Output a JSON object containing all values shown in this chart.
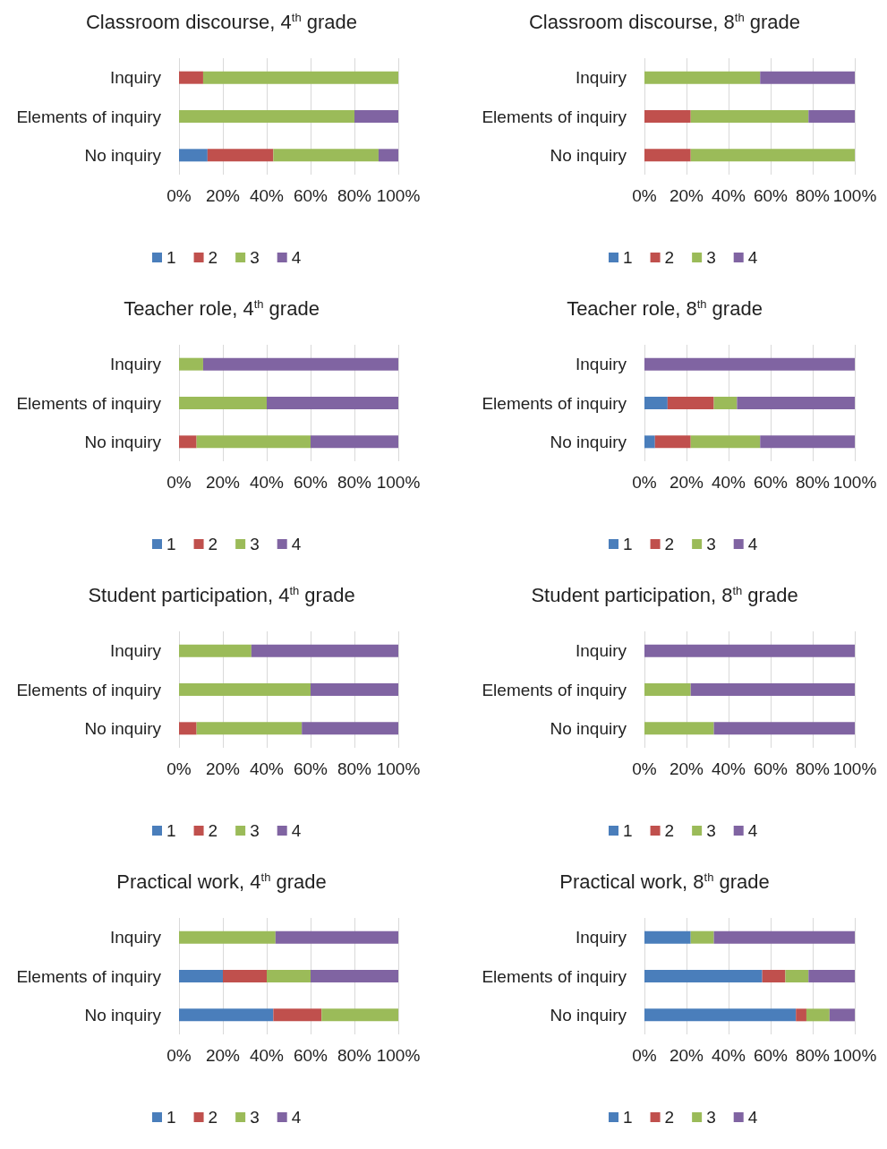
{
  "chart_data": [
    {
      "type": "bar",
      "orientation": "horizontal",
      "stacked": true,
      "title": "Classroom discourse, 4$^{th}$ grade",
      "categories": [
        "Inquiry",
        "Elements of inquiry",
        "No inquiry"
      ],
      "series": [
        {
          "name": "1",
          "color": "#4a7ebb",
          "values": [
            0,
            0,
            13
          ]
        },
        {
          "name": "2",
          "color": "#c0504d",
          "values": [
            11,
            0,
            30
          ]
        },
        {
          "name": "3",
          "color": "#9bbb59",
          "values": [
            89,
            80,
            48
          ]
        },
        {
          "name": "4",
          "color": "#8064a2",
          "values": [
            0,
            20,
            9
          ]
        }
      ],
      "xlim": [
        0,
        100
      ],
      "xticks": [
        {
          "value": 0,
          "label": "0%"
        },
        {
          "value": 20,
          "label": "20%"
        },
        {
          "value": 40,
          "label": "40%"
        },
        {
          "value": 60,
          "label": "60%"
        },
        {
          "value": 80,
          "label": "80%"
        },
        {
          "value": 100,
          "label": "100%"
        }
      ],
      "grid": "x",
      "legend": "bottom"
    },
    {
      "type": "bar",
      "orientation": "horizontal",
      "stacked": true,
      "title": "Classroom discourse, 8$^{th}$ grade",
      "categories": [
        "Inquiry",
        "Elements of inquiry",
        "No inquiry"
      ],
      "series": [
        {
          "name": "1",
          "color": "#4a7ebb",
          "values": [
            0,
            0,
            0
          ]
        },
        {
          "name": "2",
          "color": "#c0504d",
          "values": [
            0,
            22,
            22
          ]
        },
        {
          "name": "3",
          "color": "#9bbb59",
          "values": [
            55,
            56,
            78
          ]
        },
        {
          "name": "4",
          "color": "#8064a2",
          "values": [
            45,
            22,
            0
          ]
        }
      ],
      "xlim": [
        0,
        100
      ],
      "xticks": [
        {
          "value": 0,
          "label": "0%"
        },
        {
          "value": 20,
          "label": "20%"
        },
        {
          "value": 40,
          "label": "40%"
        },
        {
          "value": 60,
          "label": "60%"
        },
        {
          "value": 80,
          "label": "80%"
        },
        {
          "value": 100,
          "label": "100%"
        }
      ],
      "grid": "x",
      "legend": "bottom"
    },
    {
      "type": "bar",
      "orientation": "horizontal",
      "stacked": true,
      "title": "Teacher role, 4$^{th}$ grade",
      "categories": [
        "Inquiry",
        "Elements of inquiry",
        "No inquiry"
      ],
      "series": [
        {
          "name": "1",
          "color": "#4a7ebb",
          "values": [
            0,
            0,
            0
          ]
        },
        {
          "name": "2",
          "color": "#c0504d",
          "values": [
            0,
            0,
            8
          ]
        },
        {
          "name": "3",
          "color": "#9bbb59",
          "values": [
            11,
            40,
            52
          ]
        },
        {
          "name": "4",
          "color": "#8064a2",
          "values": [
            89,
            60,
            40
          ]
        }
      ],
      "xlim": [
        0,
        100
      ],
      "xticks": [
        {
          "value": 0,
          "label": "0%"
        },
        {
          "value": 20,
          "label": "20%"
        },
        {
          "value": 40,
          "label": "40%"
        },
        {
          "value": 60,
          "label": "60%"
        },
        {
          "value": 80,
          "label": "80%"
        },
        {
          "value": 100,
          "label": "100%"
        }
      ],
      "grid": "x",
      "legend": "bottom"
    },
    {
      "type": "bar",
      "orientation": "horizontal",
      "stacked": true,
      "title": "Teacher role, 8$^{th}$ grade",
      "categories": [
        "Inquiry",
        "Elements of inquiry",
        "No inquiry"
      ],
      "series": [
        {
          "name": "1",
          "color": "#4a7ebb",
          "values": [
            0,
            11,
            5
          ]
        },
        {
          "name": "2",
          "color": "#c0504d",
          "values": [
            0,
            22,
            17
          ]
        },
        {
          "name": "3",
          "color": "#9bbb59",
          "values": [
            0,
            11,
            33
          ]
        },
        {
          "name": "4",
          "color": "#8064a2",
          "values": [
            100,
            56,
            45
          ]
        }
      ],
      "xlim": [
        0,
        100
      ],
      "xticks": [
        {
          "value": 0,
          "label": "0%"
        },
        {
          "value": 20,
          "label": "20%"
        },
        {
          "value": 40,
          "label": "40%"
        },
        {
          "value": 60,
          "label": "60%"
        },
        {
          "value": 80,
          "label": "80%"
        },
        {
          "value": 100,
          "label": "100%"
        }
      ],
      "grid": "x",
      "legend": "bottom"
    },
    {
      "type": "bar",
      "orientation": "horizontal",
      "stacked": true,
      "title": "Student participation, 4$^{th}$ grade",
      "categories": [
        "Inquiry",
        "Elements of inquiry",
        "No inquiry"
      ],
      "series": [
        {
          "name": "1",
          "color": "#4a7ebb",
          "values": [
            0,
            0,
            0
          ]
        },
        {
          "name": "2",
          "color": "#c0504d",
          "values": [
            0,
            0,
            8
          ]
        },
        {
          "name": "3",
          "color": "#9bbb59",
          "values": [
            33,
            60,
            48
          ]
        },
        {
          "name": "4",
          "color": "#8064a2",
          "values": [
            67,
            40,
            44
          ]
        }
      ],
      "xlim": [
        0,
        100
      ],
      "xticks": [
        {
          "value": 0,
          "label": "0%"
        },
        {
          "value": 20,
          "label": "20%"
        },
        {
          "value": 40,
          "label": "40%"
        },
        {
          "value": 60,
          "label": "60%"
        },
        {
          "value": 80,
          "label": "80%"
        },
        {
          "value": 100,
          "label": "100%"
        }
      ],
      "grid": "x",
      "legend": "bottom"
    },
    {
      "type": "bar",
      "orientation": "horizontal",
      "stacked": true,
      "title": "Student participation, 8$^{th}$ grade",
      "categories": [
        "Inquiry",
        "Elements of inquiry",
        "No inquiry"
      ],
      "series": [
        {
          "name": "1",
          "color": "#4a7ebb",
          "values": [
            0,
            0,
            0
          ]
        },
        {
          "name": "2",
          "color": "#c0504d",
          "values": [
            0,
            0,
            0
          ]
        },
        {
          "name": "3",
          "color": "#9bbb59",
          "values": [
            0,
            22,
            33
          ]
        },
        {
          "name": "4",
          "color": "#8064a2",
          "values": [
            100,
            78,
            67
          ]
        }
      ],
      "xlim": [
        0,
        100
      ],
      "xticks": [
        {
          "value": 0,
          "label": "0%"
        },
        {
          "value": 20,
          "label": "20%"
        },
        {
          "value": 40,
          "label": "40%"
        },
        {
          "value": 60,
          "label": "60%"
        },
        {
          "value": 80,
          "label": "80%"
        },
        {
          "value": 100,
          "label": "100%"
        }
      ],
      "grid": "x",
      "legend": "bottom"
    },
    {
      "type": "bar",
      "orientation": "horizontal",
      "stacked": true,
      "title": "Practical work, 4$^{th}$ grade",
      "categories": [
        "Inquiry",
        "Elements of inquiry",
        "No inquiry"
      ],
      "series": [
        {
          "name": "1",
          "color": "#4a7ebb",
          "values": [
            0,
            20,
            43
          ]
        },
        {
          "name": "2",
          "color": "#c0504d",
          "values": [
            0,
            20,
            22
          ]
        },
        {
          "name": "3",
          "color": "#9bbb59",
          "values": [
            44,
            20,
            35
          ]
        },
        {
          "name": "4",
          "color": "#8064a2",
          "values": [
            56,
            40,
            0
          ]
        }
      ],
      "xlim": [
        0,
        100
      ],
      "xticks": [
        {
          "value": 0,
          "label": "0%"
        },
        {
          "value": 20,
          "label": "20%"
        },
        {
          "value": 40,
          "label": "40%"
        },
        {
          "value": 60,
          "label": "60%"
        },
        {
          "value": 80,
          "label": "80%"
        },
        {
          "value": 100,
          "label": "100%"
        }
      ],
      "grid": "x",
      "legend": "bottom"
    },
    {
      "type": "bar",
      "orientation": "horizontal",
      "stacked": true,
      "title": "Practical work, 8$^{th}$ grade",
      "categories": [
        "Inquiry",
        "Elements of inquiry",
        "No inquiry"
      ],
      "series": [
        {
          "name": "1",
          "color": "#4a7ebb",
          "values": [
            22,
            56,
            72
          ]
        },
        {
          "name": "2",
          "color": "#c0504d",
          "values": [
            0,
            11,
            5
          ]
        },
        {
          "name": "3",
          "color": "#9bbb59",
          "values": [
            11,
            11,
            11
          ]
        },
        {
          "name": "4",
          "color": "#8064a2",
          "values": [
            67,
            22,
            12
          ]
        }
      ],
      "xlim": [
        0,
        100
      ],
      "xticks": [
        {
          "value": 0,
          "label": "0%"
        },
        {
          "value": 20,
          "label": "20%"
        },
        {
          "value": 40,
          "label": "40%"
        },
        {
          "value": 60,
          "label": "60%"
        },
        {
          "value": 80,
          "label": "80%"
        },
        {
          "value": 100,
          "label": "100%"
        }
      ],
      "grid": "x",
      "legend": "bottom"
    }
  ]
}
